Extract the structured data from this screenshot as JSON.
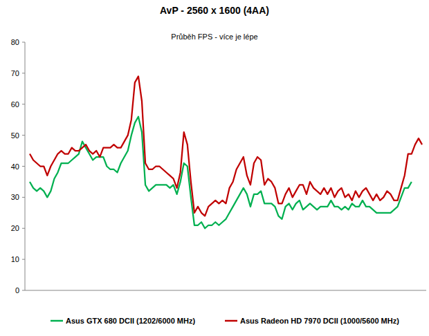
{
  "chart_data": {
    "type": "line",
    "title": "AvP - 2560 x 1600 (4AA)",
    "subtitle": "Průběh FPS - více je lépe",
    "categories": [
      null,
      null,
      null,
      null,
      null,
      null,
      null,
      null,
      null,
      null,
      null,
      null,
      null,
      null,
      null,
      null,
      null,
      null,
      null,
      null,
      null,
      null,
      null,
      null,
      null,
      null,
      null,
      null,
      null,
      null,
      null,
      null,
      null,
      null,
      null,
      null,
      null,
      null,
      null,
      null,
      null,
      null,
      null,
      null,
      null,
      null,
      null,
      null,
      null,
      null,
      null,
      null,
      null,
      null,
      null,
      null,
      null,
      null,
      null,
      null,
      null,
      null,
      null,
      null,
      null,
      null,
      null,
      null,
      null,
      null,
      null,
      null,
      null,
      null,
      null,
      null,
      null,
      null,
      null,
      null,
      null,
      null,
      null,
      null,
      null,
      null,
      null,
      null,
      null,
      null,
      null,
      null,
      null,
      null,
      null,
      null,
      null,
      null,
      null,
      null,
      null,
      null,
      null,
      null,
      null,
      null,
      null,
      null,
      null,
      null,
      null,
      null,
      null
    ],
    "series": [
      {
        "name": "Asus GTX 680 DCII (1202/6000 MHz)",
        "color": "#00b050",
        "values": [
          35,
          33,
          32,
          33,
          32,
          30,
          32,
          36,
          38,
          41,
          41,
          41,
          42,
          43,
          44,
          48,
          46,
          44,
          42,
          43,
          43,
          43,
          40,
          39,
          39,
          38,
          41,
          43,
          45,
          50,
          54,
          56,
          51,
          34,
          32,
          33,
          34,
          34,
          34,
          34,
          33,
          34,
          31,
          35,
          41,
          40,
          30,
          21,
          21,
          22,
          20,
          21,
          21,
          22,
          21,
          22,
          23,
          25,
          27,
          29,
          31,
          33,
          31,
          27,
          31,
          31,
          32,
          28,
          28,
          28,
          27,
          24,
          23,
          27,
          28,
          26,
          28,
          29,
          26,
          27,
          28,
          27,
          26,
          27,
          27,
          27,
          29,
          27,
          27,
          26,
          27,
          26,
          28,
          27,
          27,
          29,
          27,
          27,
          26,
          25,
          25,
          25,
          25,
          25,
          26,
          27,
          30,
          33,
          33,
          35,
          null,
          null,
          null
        ]
      },
      {
        "name": "Asus Radeon HD 7970 DCII (1000/5600 MHz)",
        "color": "#c00000",
        "values": [
          44,
          42,
          41,
          40,
          40,
          37,
          40,
          42,
          44,
          45,
          44,
          44,
          46,
          45,
          45,
          46,
          47,
          45,
          44,
          45,
          43,
          46,
          46,
          46,
          47,
          46,
          46,
          48,
          50,
          55,
          67,
          69,
          61,
          41,
          39,
          39,
          40,
          40,
          39,
          38,
          37,
          36,
          33,
          38,
          51,
          47,
          35,
          25,
          27,
          25,
          24,
          27,
          28,
          29,
          28,
          29,
          28,
          33,
          35,
          39,
          41,
          43,
          37,
          34,
          41,
          43,
          42,
          34,
          36,
          35,
          33,
          28,
          28,
          31,
          33,
          30,
          32,
          34,
          34,
          31,
          35,
          33,
          32,
          31,
          33,
          31,
          33,
          30,
          32,
          33,
          30,
          31,
          29,
          32,
          30,
          32,
          33,
          31,
          29,
          31,
          29,
          30,
          32,
          31,
          29,
          29,
          33,
          37,
          44,
          44,
          47,
          49,
          47
        ]
      }
    ],
    "ylim": [
      0,
      80
    ],
    "yticks": [
      0,
      10,
      20,
      30,
      40,
      50,
      60,
      70,
      80
    ],
    "grid": false,
    "legend": "bottom"
  }
}
